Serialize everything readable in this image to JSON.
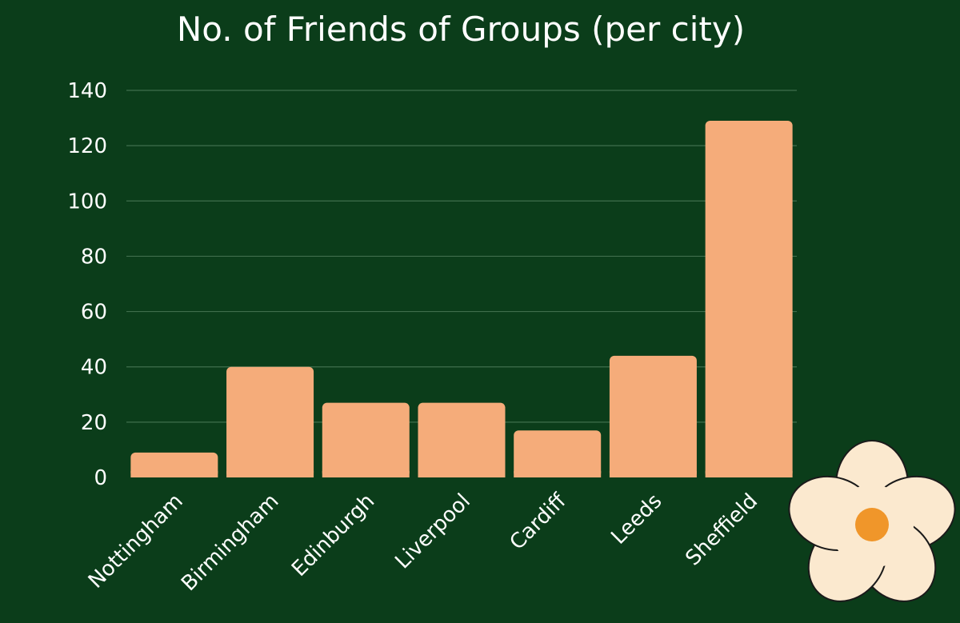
{
  "chart_data": {
    "type": "bar",
    "title": "No. of Friends of Groups (per city)",
    "xlabel": "",
    "ylabel": "",
    "categories": [
      "Nottingham",
      "Birmingham",
      "Edinburgh",
      "Liverpool",
      "Cardiff",
      "Leeds",
      "Sheffield"
    ],
    "values": [
      9,
      40,
      27,
      27,
      17,
      44,
      129
    ],
    "ylim": [
      0,
      140
    ],
    "yticks": [
      0,
      20,
      40,
      60,
      80,
      100,
      120,
      140
    ],
    "grid": true,
    "legend": "none"
  },
  "colors": {
    "background": "#0b3d1a",
    "bar": "#f5ac7a",
    "gridline": "#3f6e4c",
    "text": "#ffffff",
    "flower_petal": "#fbe9cf",
    "flower_center": "#f0962a"
  },
  "decoration": {
    "icon": "daisy-flower-icon"
  }
}
